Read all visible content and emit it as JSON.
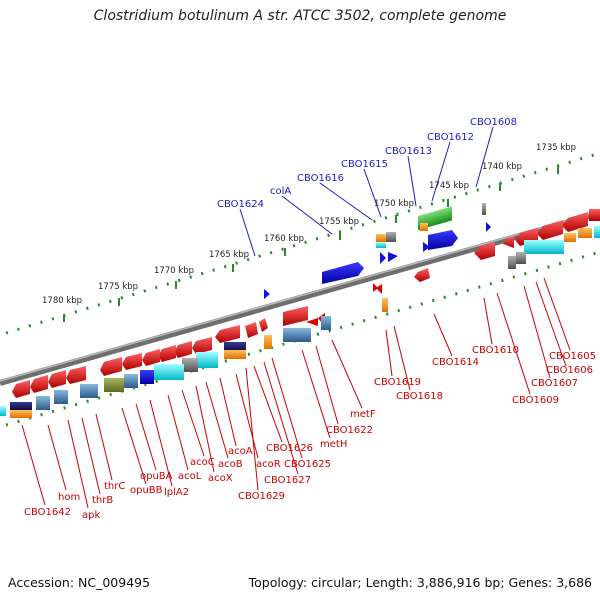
{
  "title": "Clostridium botulinum A str. ATCC 3502, complete genome",
  "accession_text": "Accession: NC_009495",
  "summary_text": "Topology: circular; Length: 3,886,916 bp; Genes: 3,686",
  "scale_ticks": [
    "1735 kbp",
    "1740 kbp",
    "1745 kbp",
    "1750 kbp",
    "1755 kbp",
    "1760 kbp",
    "1765 kbp",
    "1770 kbp",
    "1775 kbp",
    "1780 kbp"
  ],
  "genes_top": [
    "CBO1608",
    "CBO1612",
    "CBO1613",
    "CBO1615",
    "CBO1616",
    "colA",
    "CBO1624"
  ],
  "genes_bottom": [
    "CBO1642",
    "hom",
    "apk",
    "thrB",
    "thrC",
    "opuBB",
    "opuBA",
    "lplA2",
    "acoL",
    "acoC",
    "acoX",
    "acoB",
    "acoA",
    "acoR",
    "CBO1629",
    "CBO1626",
    "CBO1627",
    "CBO1625",
    "metH",
    "CBO1622",
    "metF",
    "CBO1619",
    "CBO1618",
    "CBO1614",
    "CBO1610",
    "CBO1609",
    "CBO1607",
    "CBO1606",
    "CBO1605"
  ],
  "colors": {
    "forward_gene": "#1010e0",
    "reverse_gene": "#e00000",
    "label_top": "#1a1ac8",
    "label_bottom": "#cc0000",
    "tick": "#2a8a2a",
    "backbone": "#7a7a7a"
  }
}
